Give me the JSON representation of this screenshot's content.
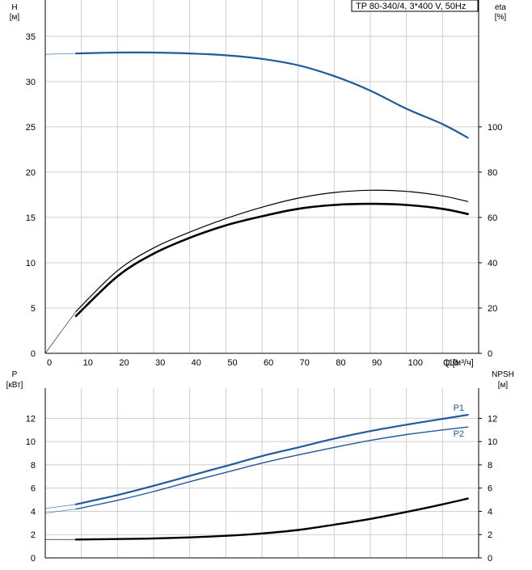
{
  "title": "TP 80-340/4, 3*400 V, 50Hz",
  "colors": {
    "head": "#1f5a9c",
    "eta": "#000000",
    "p1": "#1f5a9c",
    "p2": "#1f5a9c",
    "npsh": "#000000",
    "grid": "#cfcfcf"
  },
  "chart_data": [
    {
      "type": "line",
      "panel": "top",
      "x_label": "Q [м³/ч]",
      "y_left_label": "H",
      "y_left_unit": "[м]",
      "y_right_label": "eta",
      "y_right_unit": "[%]",
      "x_ticks": [
        "0",
        "10",
        "20",
        "30",
        "40",
        "50",
        "60",
        "70",
        "80",
        "90",
        "100",
        "110"
      ],
      "y_left_ticks": [
        "0",
        "5",
        "10",
        "15",
        "20",
        "25",
        "30",
        "35"
      ],
      "y_right_ticks": [
        "0",
        "20",
        "40",
        "60",
        "80",
        "100"
      ],
      "xlim": [
        0,
        120
      ],
      "ylim_left": [
        0,
        39
      ],
      "ylim_right": [
        0,
        156
      ],
      "grid": true,
      "series": [
        {
          "key": "head",
          "axis": "left",
          "x": [
            0,
            8.5,
            20,
            30,
            40,
            50,
            60,
            70,
            80,
            90,
            100,
            110,
            117
          ],
          "y": [
            33.0,
            33.1,
            33.2,
            33.2,
            33.1,
            32.9,
            32.5,
            31.8,
            30.6,
            29.0,
            27.0,
            25.3,
            23.8
          ],
          "extrapolated_below_x": 8.5
        },
        {
          "key": "eta_thin",
          "axis": "right",
          "x": [
            0,
            8.5,
            20,
            30,
            40,
            50,
            60,
            70,
            80,
            90,
            100,
            110,
            117
          ],
          "y": [
            0,
            18.5,
            36.5,
            46.5,
            53.5,
            59.5,
            64.5,
            68.5,
            71.0,
            72.0,
            71.5,
            69.5,
            67.0
          ],
          "extrapolated_below_x": 8.5
        },
        {
          "key": "eta_thick",
          "axis": "right",
          "x": [
            8.5,
            20,
            30,
            40,
            50,
            60,
            70,
            80,
            90,
            100,
            110,
            117
          ],
          "y": [
            16.5,
            34.0,
            44.0,
            51.0,
            56.5,
            60.5,
            63.8,
            65.5,
            66.0,
            65.5,
            63.8,
            61.5
          ]
        }
      ]
    },
    {
      "type": "line",
      "panel": "bottom",
      "y_left_label": "P",
      "y_left_unit": "[кВт]",
      "y_right_label": "NPSH",
      "y_right_unit": "[м]",
      "y_left_ticks": [
        "0",
        "2",
        "4",
        "6",
        "8",
        "10",
        "12"
      ],
      "y_right_ticks": [
        "0",
        "2",
        "4",
        "6",
        "8",
        "10",
        "12"
      ],
      "xlim": [
        0,
        120
      ],
      "ylim_left": [
        0,
        14.6
      ],
      "ylim_right": [
        0,
        14.6
      ],
      "grid": true,
      "series": [
        {
          "key": "p1",
          "name": "P1",
          "axis": "left",
          "x": [
            0,
            8.5,
            20,
            30,
            40,
            50,
            60,
            70,
            80,
            90,
            100,
            110,
            117
          ],
          "y": [
            4.25,
            4.6,
            5.4,
            6.2,
            7.05,
            7.9,
            8.75,
            9.5,
            10.25,
            10.9,
            11.45,
            11.95,
            12.3
          ],
          "extrapolated_below_x": 8.5
        },
        {
          "key": "p2",
          "name": "P2",
          "axis": "left",
          "x": [
            0,
            8.5,
            20,
            30,
            40,
            50,
            60,
            70,
            80,
            90,
            100,
            110,
            117
          ],
          "y": [
            3.85,
            4.2,
            4.95,
            5.7,
            6.55,
            7.35,
            8.15,
            8.85,
            9.5,
            10.1,
            10.6,
            11.0,
            11.25
          ],
          "extrapolated_below_x": 8.5
        },
        {
          "key": "npsh",
          "axis": "right",
          "x": [
            0,
            8.5,
            20,
            30,
            40,
            50,
            60,
            70,
            80,
            90,
            100,
            110,
            117
          ],
          "y": [
            1.58,
            1.58,
            1.62,
            1.67,
            1.76,
            1.9,
            2.1,
            2.4,
            2.85,
            3.35,
            3.95,
            4.6,
            5.1
          ],
          "extrapolated_below_x": 8.5
        }
      ]
    }
  ]
}
